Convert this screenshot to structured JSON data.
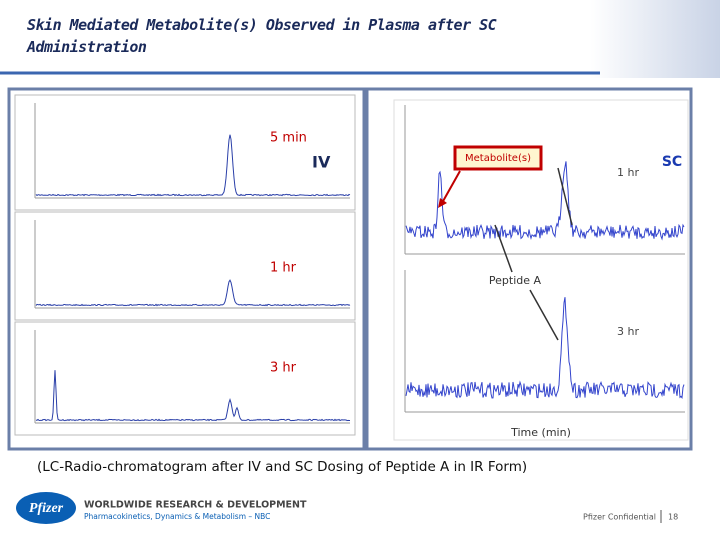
{
  "header": {
    "title": "Skin Mediated Metabolite(s) Observed in Plasma after SC Administration"
  },
  "left_panel": {
    "labels": [
      "5 min",
      "IV",
      "1 hr",
      "3 hr"
    ]
  },
  "right_panel": {
    "callout": "Metabolite(s)",
    "route": "SC",
    "labels": [
      "1 hr",
      "3 hr"
    ],
    "peak_label": "Peptide A",
    "x_axis_label": "Time (min)"
  },
  "caption": "(LC-Radio-chromatogram after IV and SC Dosing of Peptide A in IR Form)",
  "footer": {
    "logo": "Pfizer",
    "org": "WORLDWIDE RESEARCH & DEVELOPMENT",
    "dept": "Pharmacokinetics, Dynamics & Metabolism – NBC",
    "confidential": "Pfizer Confidential",
    "page": "18"
  }
}
